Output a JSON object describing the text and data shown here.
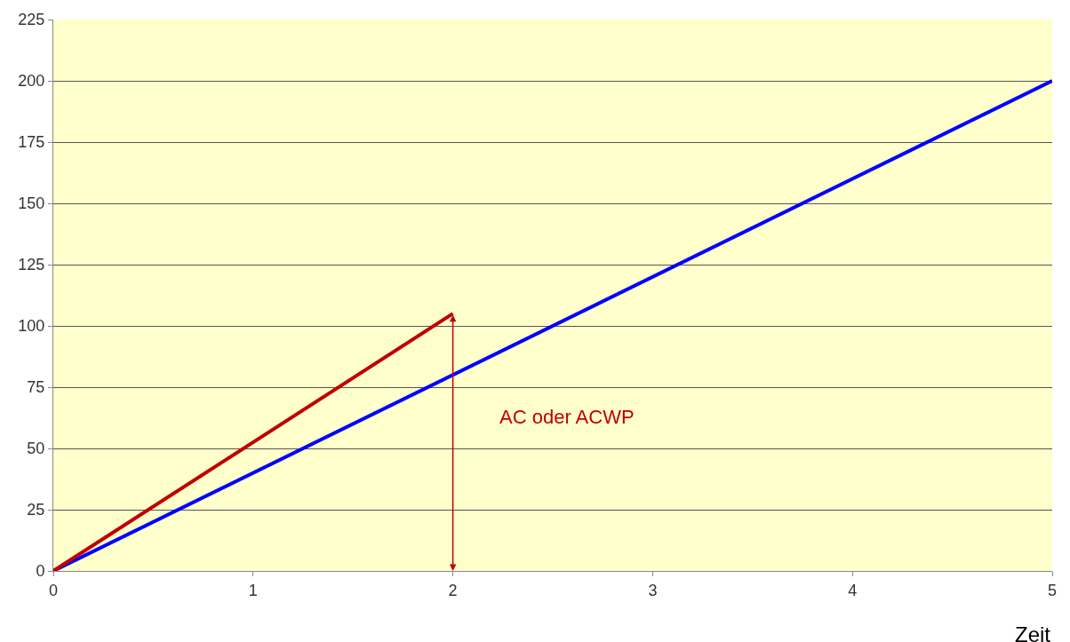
{
  "chart_data": {
    "type": "line",
    "xlabel": "Zeit",
    "series": [
      {
        "color": "#0000ff",
        "x": [
          0,
          5
        ],
        "values": [
          0,
          200
        ]
      },
      {
        "color": "#c00000",
        "x": [
          0,
          2
        ],
        "values": [
          0,
          105
        ]
      }
    ],
    "annotations": [
      "AC oder ACWP"
    ],
    "xlim": [
      0,
      5
    ],
    "xticks": [
      0,
      1,
      2,
      3,
      4,
      5
    ],
    "ylim": [
      0,
      225
    ],
    "yticks": [
      0,
      25,
      50,
      75,
      100,
      125,
      150,
      175,
      200,
      225
    ],
    "grid": "y"
  }
}
